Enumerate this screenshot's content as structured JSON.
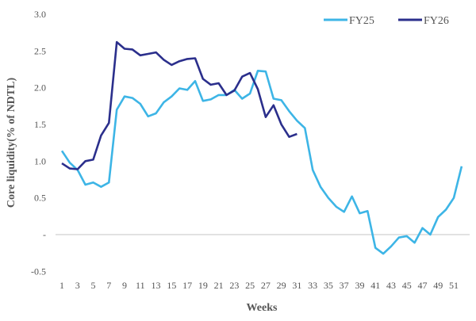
{
  "chart_data": {
    "type": "line",
    "title": "",
    "xlabel": "Weeks",
    "ylabel": "Core liquidity(% of NDTL)",
    "ylim": [
      -0.5,
      3.0
    ],
    "yticks": [
      {
        "value": 3.0,
        "label": "3.0"
      },
      {
        "value": 2.5,
        "label": "2.5"
      },
      {
        "value": 2.0,
        "label": "2.0"
      },
      {
        "value": 1.5,
        "label": "1.5"
      },
      {
        "value": 1.0,
        "label": "1.0"
      },
      {
        "value": 0.5,
        "label": "0.5"
      },
      {
        "value": 0,
        "label": "-"
      },
      {
        "value": -0.5,
        "label": "-0.5"
      }
    ],
    "xlim": [
      1,
      52
    ],
    "xticks": [
      "1",
      "3",
      "5",
      "7",
      "9",
      "11",
      "13",
      "15",
      "17",
      "19",
      "21",
      "23",
      "25",
      "27",
      "29",
      "31",
      "33",
      "35",
      "37",
      "39",
      "41",
      "43",
      "45",
      "47",
      "49",
      "51"
    ],
    "legend_position": "top-right",
    "series": [
      {
        "name": "FY25",
        "color": "#3db5e6",
        "values": [
          1.14,
          0.98,
          0.88,
          0.68,
          0.71,
          0.65,
          0.71,
          1.7,
          1.88,
          1.86,
          1.78,
          1.61,
          1.65,
          1.8,
          1.88,
          1.99,
          1.97,
          2.09,
          1.82,
          1.84,
          1.9,
          1.9,
          1.97,
          1.85,
          1.92,
          2.23,
          2.22,
          1.85,
          1.83,
          1.68,
          1.55,
          1.45,
          0.88,
          0.65,
          0.5,
          0.38,
          0.31,
          0.52,
          0.29,
          0.32,
          -0.18,
          -0.26,
          -0.16,
          -0.04,
          -0.02,
          -0.11,
          0.09,
          0.0,
          0.24,
          0.34,
          0.5,
          0.93
        ]
      },
      {
        "name": "FY26",
        "color": "#2b2f8c",
        "values": [
          0.97,
          0.9,
          0.89,
          1.0,
          1.02,
          1.35,
          1.52,
          2.62,
          2.53,
          2.52,
          2.44,
          2.46,
          2.48,
          2.38,
          2.31,
          2.36,
          2.39,
          2.4,
          2.12,
          2.04,
          2.06,
          1.9,
          1.96,
          2.15,
          2.2,
          1.98,
          1.6,
          1.76,
          1.5,
          1.33,
          1.37
        ]
      }
    ]
  }
}
